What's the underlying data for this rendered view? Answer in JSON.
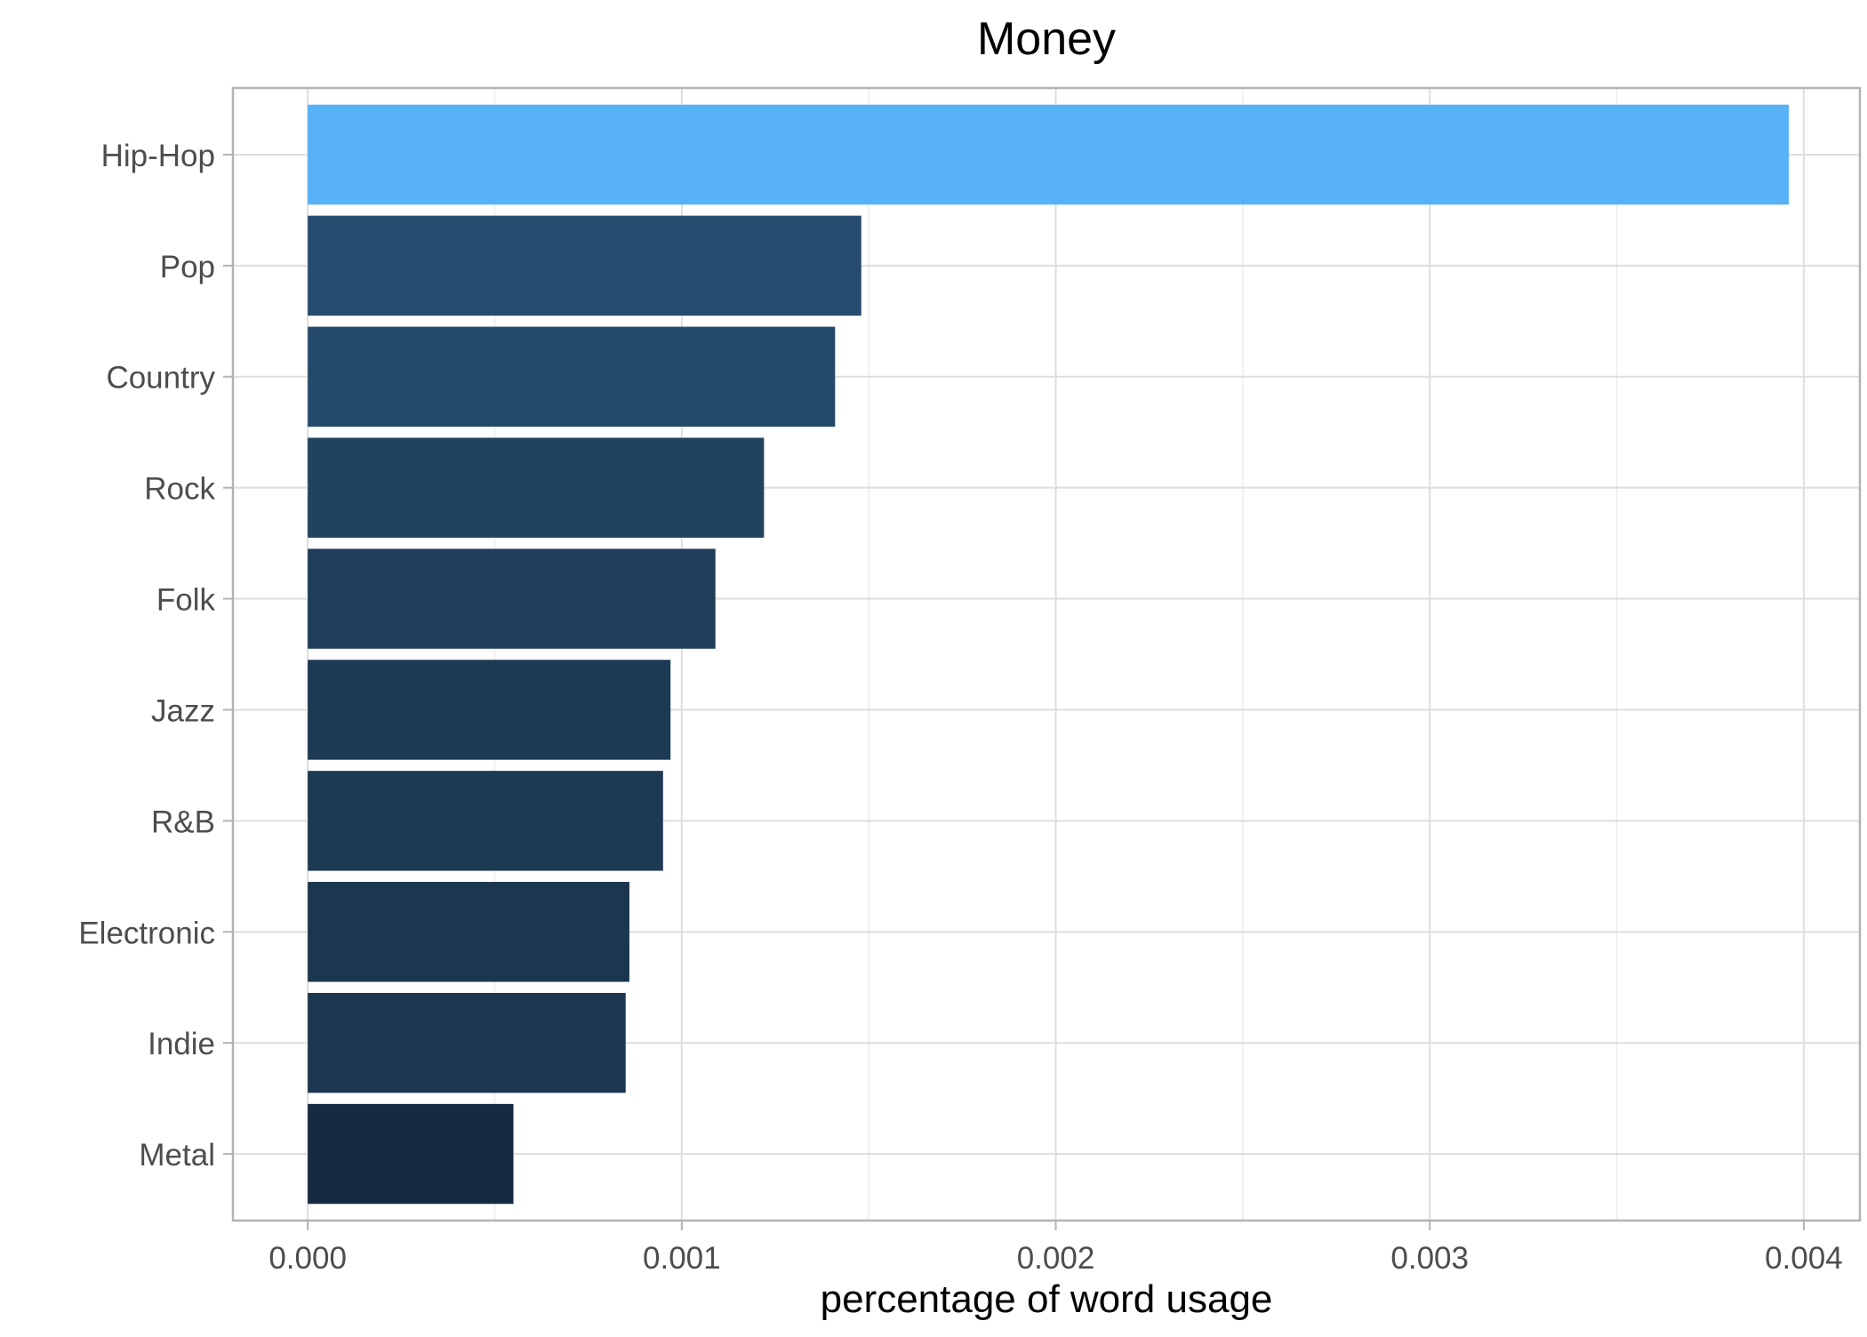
{
  "chart_data": {
    "type": "bar",
    "orientation": "horizontal",
    "title": "Money",
    "xlabel": "percentage of word usage",
    "ylabel": "",
    "categories": [
      "Hip-Hop",
      "Pop",
      "Country",
      "Rock",
      "Folk",
      "Jazz",
      "R&B",
      "Electronic",
      "Indie",
      "Metal"
    ],
    "values": [
      0.00396,
      0.00148,
      0.00141,
      0.00122,
      0.00109,
      0.00097,
      0.00095,
      0.00086,
      0.00085,
      0.00055
    ],
    "colors": [
      "#56B1F7",
      "#254B6E",
      "#244A6B",
      "#21435F",
      "#1F3E59",
      "#1D3A54",
      "#1D3A53",
      "#1B364E",
      "#1B364E",
      "#162B41"
    ],
    "xlim": [
      -0.0002,
      0.00415
    ],
    "xticks": [
      0.0,
      0.001,
      0.002,
      0.003,
      0.004
    ],
    "xtick_labels": [
      "0.000",
      "0.001",
      "0.002",
      "0.003",
      "0.004"
    ],
    "grid": true,
    "legend": "none"
  }
}
